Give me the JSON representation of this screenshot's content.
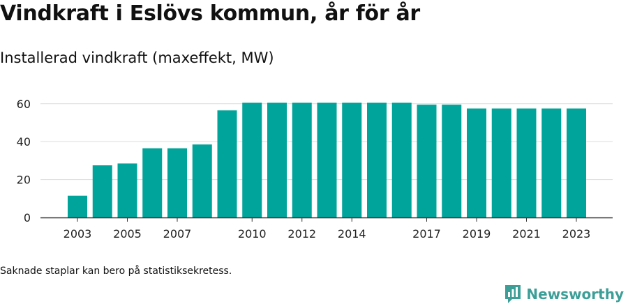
{
  "header": {
    "title": "Vindkraft i Eslövs kommun, år för år",
    "subtitle": "Installerad vindkraft (maxeffekt, MW)"
  },
  "footer": {
    "note": "Saknade staplar kan bero på statistiksekretess.",
    "logo_text": "Newsworthy"
  },
  "colors": {
    "bar": "#00a49a",
    "grid": "#dddddd",
    "axis": "#333333",
    "logo": "#3d9e98"
  },
  "chart_data": {
    "type": "bar",
    "categories": [
      "2003",
      "2004",
      "2005",
      "2006",
      "2007",
      "2008",
      "2009",
      "2010",
      "2011",
      "2012",
      "2013",
      "2014",
      "2015",
      "2016",
      "2017",
      "2018",
      "2019",
      "2020",
      "2021",
      "2022",
      "2023"
    ],
    "values": [
      11.5,
      27.5,
      28.5,
      36.5,
      36.5,
      38.5,
      56.5,
      60.5,
      60.5,
      60.5,
      60.5,
      60.5,
      60.5,
      60.5,
      59.5,
      59.5,
      57.5,
      57.5,
      57.5,
      57.5,
      57.5
    ],
    "x_tick_labels": [
      "2003",
      "2005",
      "2007",
      "2010",
      "2012",
      "2014",
      "2017",
      "2019",
      "2021",
      "2023"
    ],
    "y_ticks": [
      0,
      20,
      40,
      60
    ],
    "ylim": [
      0,
      65
    ],
    "grid": true,
    "legend": "none"
  }
}
